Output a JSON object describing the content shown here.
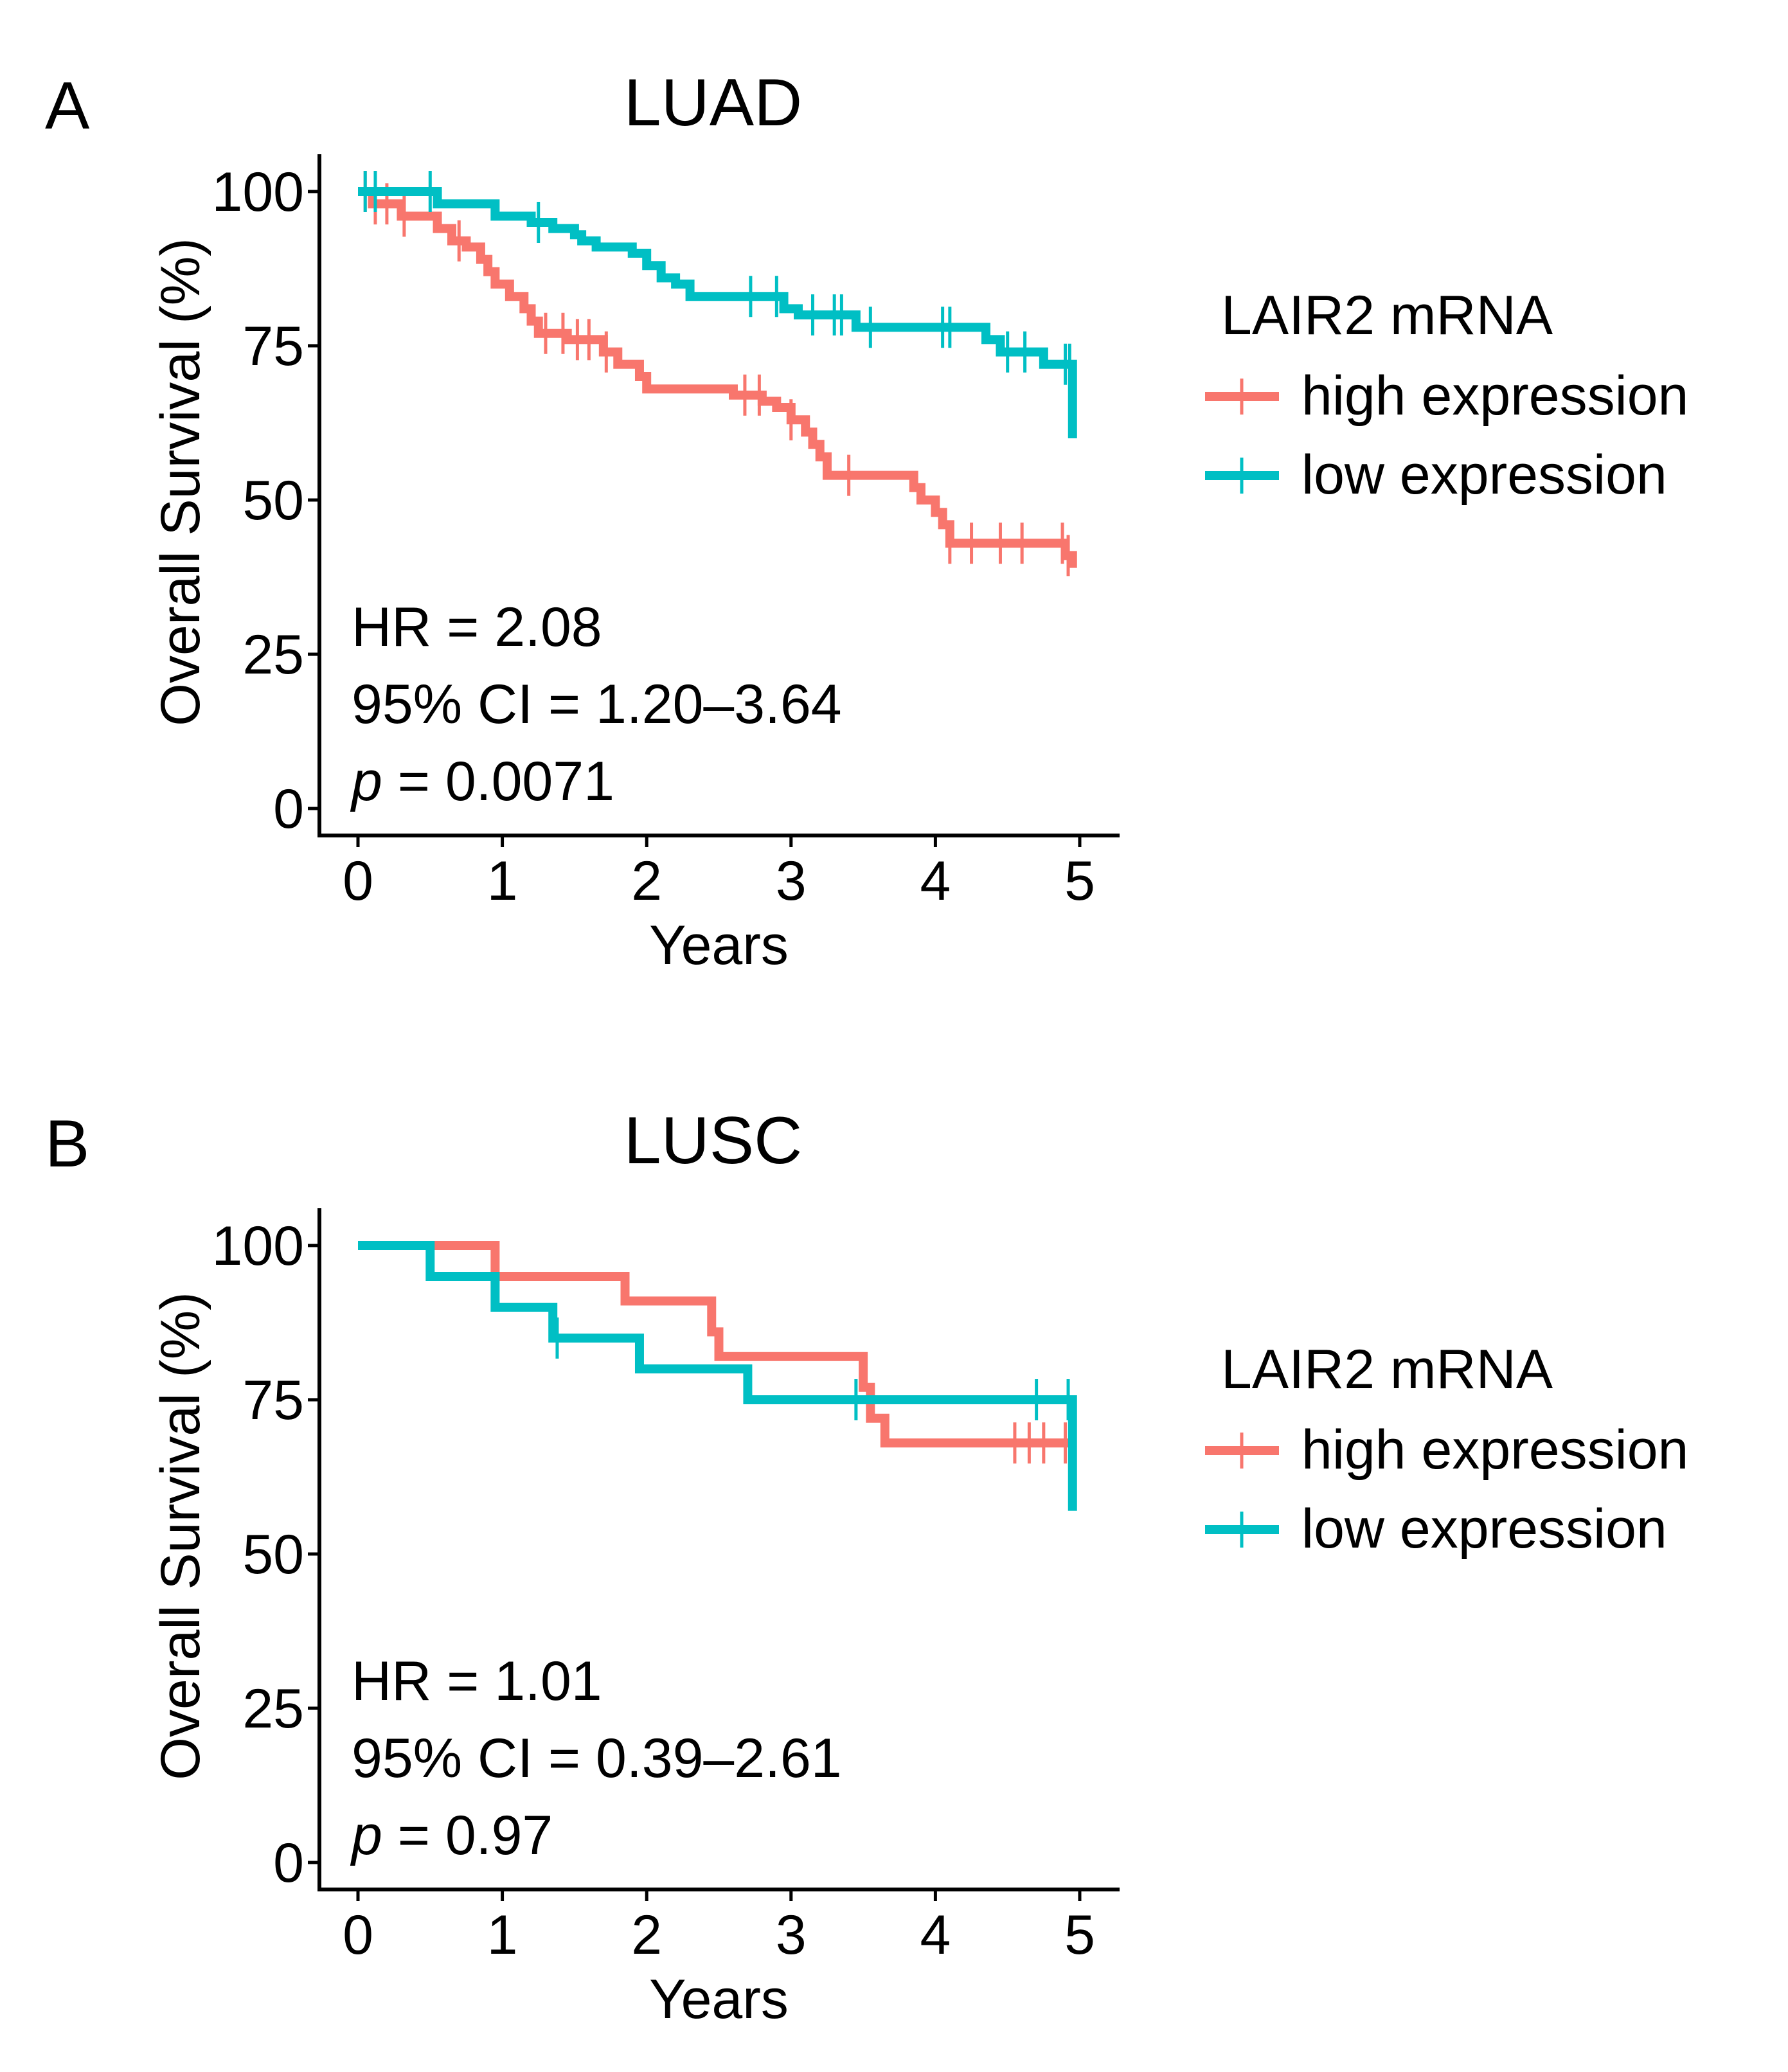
{
  "chart_data": [
    {
      "type": "line",
      "panel": "A",
      "title": "LUAD",
      "xlabel": "Years",
      "ylabel": "Overall Survival (%)",
      "xlim": [
        0,
        5
      ],
      "ylim": [
        0,
        100
      ],
      "xticks": [
        "0",
        "1",
        "2",
        "3",
        "4",
        "5"
      ],
      "yticks": [
        "0",
        "25",
        "50",
        "75",
        "100"
      ],
      "stats": {
        "hr": "HR = 2.08",
        "ci": "95% CI = 1.20–3.64",
        "p_symbol": "p",
        "p_value": " = 0.0071"
      },
      "legend": {
        "title": "LAIR2 mRNA",
        "position": "right"
      },
      "series": [
        {
          "name": "high expression",
          "color": "#F8766D",
          "steps": [
            [
              0,
              100
            ],
            [
              0.1,
              98
            ],
            [
              0.3,
              96
            ],
            [
              0.55,
              94
            ],
            [
              0.65,
              92
            ],
            [
              0.75,
              91
            ],
            [
              0.85,
              89
            ],
            [
              0.9,
              87
            ],
            [
              0.95,
              85
            ],
            [
              1.05,
              83
            ],
            [
              1.15,
              81
            ],
            [
              1.2,
              79
            ],
            [
              1.25,
              77
            ],
            [
              1.45,
              76
            ],
            [
              1.7,
              74
            ],
            [
              1.8,
              72
            ],
            [
              1.95,
              70
            ],
            [
              2.0,
              68
            ],
            [
              2.6,
              67
            ],
            [
              2.8,
              66
            ],
            [
              2.9,
              65
            ],
            [
              3.0,
              63
            ],
            [
              3.1,
              61
            ],
            [
              3.15,
              59
            ],
            [
              3.2,
              57
            ],
            [
              3.25,
              54
            ],
            [
              3.85,
              52
            ],
            [
              3.9,
              50
            ],
            [
              4.0,
              48
            ],
            [
              4.05,
              46
            ],
            [
              4.1,
              43
            ],
            [
              4.9,
              41
            ],
            [
              4.95,
              39
            ]
          ],
          "end_x": 4.95,
          "censor_x": [
            0.05,
            0.12,
            0.2,
            0.32,
            0.7,
            1.3,
            1.42,
            1.52,
            1.6,
            1.72,
            2.68,
            2.78,
            3.0,
            3.4,
            4.1,
            4.25,
            4.45,
            4.6,
            4.88,
            4.92
          ]
        },
        {
          "name": "low expression",
          "color": "#00BFC4",
          "steps": [
            [
              0,
              100
            ],
            [
              0.55,
              98
            ],
            [
              0.95,
              96
            ],
            [
              1.2,
              95
            ],
            [
              1.35,
              94
            ],
            [
              1.5,
              93
            ],
            [
              1.55,
              92
            ],
            [
              1.65,
              91
            ],
            [
              1.9,
              90
            ],
            [
              2.0,
              88
            ],
            [
              2.1,
              86
            ],
            [
              2.2,
              85
            ],
            [
              2.3,
              83
            ],
            [
              2.95,
              81
            ],
            [
              3.05,
              80
            ],
            [
              3.45,
              78
            ],
            [
              4.35,
              76
            ],
            [
              4.45,
              74
            ],
            [
              4.75,
              72
            ],
            [
              4.95,
              60
            ]
          ],
          "end_x": 4.95,
          "censor_x": [
            0.05,
            0.12,
            0.5,
            1.25,
            2.72,
            2.9,
            3.15,
            3.3,
            3.35,
            3.55,
            4.05,
            4.1,
            4.5,
            4.62,
            4.9,
            4.93
          ]
        }
      ]
    },
    {
      "type": "line",
      "panel": "B",
      "title": "LUSC",
      "xlabel": "Years",
      "ylabel": "Overall Survival (%)",
      "xlim": [
        0,
        5
      ],
      "ylim": [
        0,
        100
      ],
      "xticks": [
        "0",
        "1",
        "2",
        "3",
        "4",
        "5"
      ],
      "yticks": [
        "0",
        "25",
        "50",
        "75",
        "100"
      ],
      "stats": {
        "hr": "HR = 1.01",
        "ci": "95% CI = 0.39–2.61",
        "p_symbol": "p",
        "p_value": " = 0.97"
      },
      "legend": {
        "title": "LAIR2 mRNA",
        "position": "right"
      },
      "series": [
        {
          "name": "high expression",
          "color": "#F8766D",
          "steps": [
            [
              0,
              100
            ],
            [
              0.95,
              95
            ],
            [
              1.85,
              91
            ],
            [
              2.45,
              86
            ],
            [
              2.5,
              82
            ],
            [
              3.5,
              77
            ],
            [
              3.55,
              72
            ],
            [
              3.65,
              68
            ]
          ],
          "end_x": 4.95,
          "censor_x": [
            4.55,
            4.65,
            4.75,
            4.9
          ]
        },
        {
          "name": "low expression",
          "color": "#00BFC4",
          "steps": [
            [
              0,
              100
            ],
            [
              0.5,
              95
            ],
            [
              0.95,
              90
            ],
            [
              1.35,
              85
            ],
            [
              1.95,
              80
            ],
            [
              2.7,
              75
            ],
            [
              4.95,
              57
            ]
          ],
          "end_x": 4.95,
          "censor_x": [
            1.38,
            3.45,
            4.7,
            4.92
          ]
        }
      ]
    }
  ]
}
